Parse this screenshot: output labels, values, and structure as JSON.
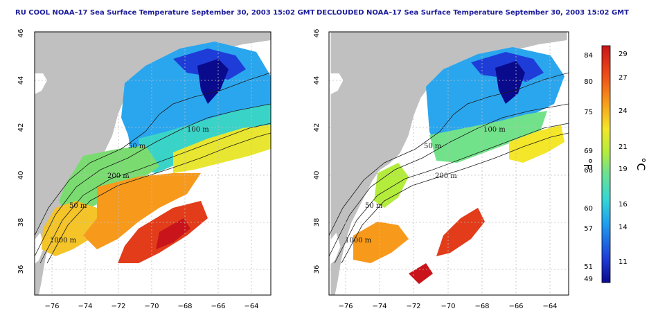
{
  "titles": {
    "left": "RU COOL NOAA–17 Sea Surface Temperature September 30, 2003 15:02 GMT",
    "right": "DECLOUDED NOAA–17 Sea Surface Temperature September 30, 2003 15:02 GMT"
  },
  "axes": {
    "x_ticks": [
      "−76",
      "−74",
      "−72",
      "−70",
      "−68",
      "−66",
      "−64"
    ],
    "y_ticks": [
      "46",
      "44",
      "42",
      "40",
      "38",
      "36"
    ]
  },
  "contour_labels": [
    "50 m",
    "100 m",
    "200 m",
    "1000 m"
  ],
  "colorbar": {
    "fahrenheit_ticks": [
      "84",
      "80",
      "75",
      "69",
      "66",
      "60",
      "57",
      "51",
      "49"
    ],
    "celsius_ticks": [
      "29",
      "27",
      "24",
      "21",
      "19",
      "16",
      "14",
      "11"
    ],
    "fahrenheit_unit": "°F",
    "celsius_unit": "°C"
  },
  "colors": {
    "land": "#c0c0c0",
    "title": "#1b1b9a",
    "scale": [
      "#0a0a8c",
      "#1e3cd8",
      "#1fa0ee",
      "#35d6d6",
      "#72e28a",
      "#b4ec3c",
      "#f4e628",
      "#f7a21c",
      "#f0501a",
      "#c8141a"
    ]
  }
}
